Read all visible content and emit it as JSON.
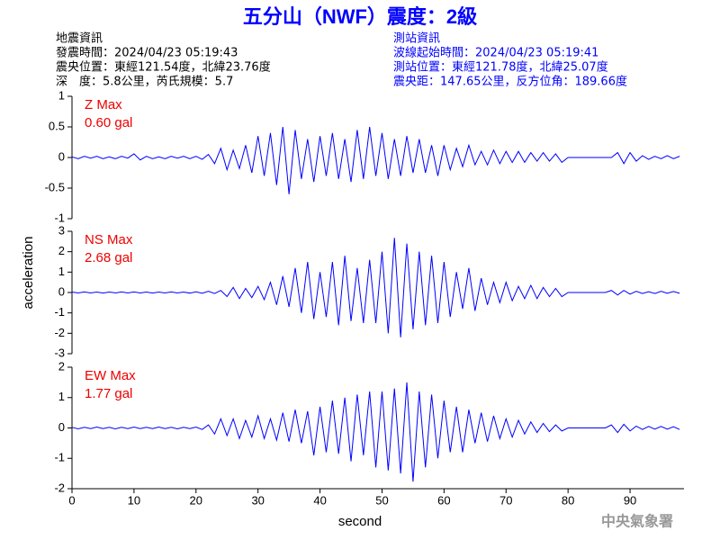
{
  "header": {
    "title": "五分山（NWF）震度：2級",
    "left": [
      "地震資訊",
      "發震時間：2024/04/23 05:19:43",
      "震央位置：東經121.54度，北緯23.76度",
      "深　度：5.8公里，芮氏規模：5.7"
    ],
    "right": [
      "測站資訊",
      "波線起始時間：2024/04/23 05:19:41",
      "測站位置：東經121.78度，北緯25.07度",
      "震央距：147.65公里，反方位角：189.66度"
    ],
    "xlabel": "second",
    "ylabel": "acceleration",
    "footer": "中央氣象署"
  },
  "chart_data": [
    {
      "type": "line",
      "title": "Z Max",
      "annotation": "0.60 gal",
      "color": "#0000ff",
      "xlim": [
        0,
        98.7
      ],
      "ylim": [
        -1,
        1
      ],
      "yticks": [
        1,
        0.5,
        0,
        -0.5,
        -1
      ],
      "x": [
        0,
        1,
        2,
        3,
        4,
        5,
        6,
        7,
        8,
        9,
        10,
        11,
        12,
        13,
        14,
        15,
        16,
        17,
        18,
        19,
        20,
        21,
        22,
        23,
        24,
        25,
        26,
        27,
        28,
        29,
        30,
        31,
        32,
        33,
        34,
        35,
        36,
        37,
        38,
        39,
        40,
        41,
        42,
        43,
        44,
        45,
        46,
        47,
        48,
        49,
        50,
        51,
        52,
        53,
        54,
        55,
        56,
        57,
        58,
        59,
        60,
        61,
        62,
        63,
        64,
        65,
        66,
        67,
        68,
        69,
        70,
        71,
        72,
        73,
        74,
        75,
        76,
        77,
        78,
        79,
        80,
        81,
        82,
        83,
        84,
        85,
        86,
        87,
        88,
        89,
        90,
        91,
        92,
        93,
        94,
        95,
        96,
        97,
        98
      ],
      "values": [
        0.01,
        -0.02,
        0.02,
        -0.01,
        0.02,
        -0.02,
        0.01,
        -0.02,
        0.02,
        -0.01,
        0.06,
        -0.04,
        0.02,
        -0.02,
        0.01,
        -0.02,
        0.02,
        -0.01,
        0.02,
        -0.02,
        0.02,
        -0.03,
        0.05,
        -0.1,
        0.15,
        -0.2,
        0.12,
        -0.18,
        0.2,
        -0.25,
        0.35,
        -0.3,
        0.4,
        -0.45,
        0.5,
        -0.6,
        0.45,
        -0.35,
        0.3,
        -0.4,
        0.35,
        -0.3,
        0.4,
        -0.35,
        0.3,
        -0.4,
        0.45,
        -0.35,
        0.5,
        -0.3,
        0.4,
        -0.35,
        0.3,
        -0.3,
        0.35,
        -0.25,
        0.3,
        -0.25,
        0.2,
        -0.3,
        0.2,
        -0.2,
        0.15,
        -0.15,
        0.2,
        -0.12,
        0.1,
        -0.12,
        0.12,
        -0.1,
        0.1,
        -0.08,
        0.1,
        -0.08,
        0.08,
        -0.06,
        0.08,
        -0.06,
        0.06,
        -0.08,
        0,
        0,
        0,
        0,
        0,
        0,
        0,
        0,
        0.08,
        -0.1,
        0.08,
        -0.06,
        0.03,
        -0.03,
        0.02,
        -0.02,
        0.03,
        -0.02,
        0.02
      ]
    },
    {
      "type": "line",
      "title": "NS Max",
      "annotation": "2.68 gal",
      "color": "#0000ff",
      "xlim": [
        0,
        98.7
      ],
      "ylim": [
        -3,
        3
      ],
      "yticks": [
        3,
        2,
        1,
        0,
        -1,
        -2,
        -3
      ],
      "x": [
        0,
        1,
        2,
        3,
        4,
        5,
        6,
        7,
        8,
        9,
        10,
        11,
        12,
        13,
        14,
        15,
        16,
        17,
        18,
        19,
        20,
        21,
        22,
        23,
        24,
        25,
        26,
        27,
        28,
        29,
        30,
        31,
        32,
        33,
        34,
        35,
        36,
        37,
        38,
        39,
        40,
        41,
        42,
        43,
        44,
        45,
        46,
        47,
        48,
        49,
        50,
        51,
        52,
        53,
        54,
        55,
        56,
        57,
        58,
        59,
        60,
        61,
        62,
        63,
        64,
        65,
        66,
        67,
        68,
        69,
        70,
        71,
        72,
        73,
        74,
        75,
        76,
        77,
        78,
        79,
        80,
        81,
        82,
        83,
        84,
        85,
        86,
        87,
        88,
        89,
        90,
        91,
        92,
        93,
        94,
        95,
        96,
        97,
        98
      ],
      "values": [
        0.02,
        -0.02,
        0.03,
        -0.02,
        0.02,
        -0.03,
        0.02,
        -0.02,
        0.03,
        -0.02,
        0.03,
        -0.02,
        0.02,
        -0.03,
        0.02,
        -0.02,
        0.03,
        -0.02,
        0.02,
        -0.03,
        0.03,
        -0.04,
        0.06,
        -0.05,
        0.1,
        -0.2,
        0.25,
        -0.3,
        0.2,
        -0.25,
        0.3,
        -0.35,
        0.5,
        -0.6,
        0.8,
        -0.7,
        1.2,
        -1,
        1.5,
        -1.3,
        1,
        -1.2,
        1.5,
        -1.6,
        1.8,
        -1.4,
        1.2,
        -1.5,
        1.6,
        -1.5,
        2,
        -2,
        2.68,
        -2.2,
        2.4,
        -1.8,
        2,
        -1.6,
        1.8,
        -1.5,
        1.5,
        -1.2,
        1,
        -0.8,
        1.2,
        -0.9,
        0.7,
        -0.6,
        0.5,
        -0.5,
        0.5,
        -0.4,
        0.3,
        -0.3,
        0.35,
        -0.3,
        0.25,
        -0.2,
        0.2,
        -0.2,
        0,
        0,
        0,
        0,
        0,
        0,
        0,
        0.1,
        -0.12,
        0.1,
        -0.08,
        0.06,
        -0.05,
        0.04,
        -0.05,
        0.06,
        -0.04,
        0.05,
        -0.04
      ]
    },
    {
      "type": "line",
      "title": "EW Max",
      "annotation": "1.77 gal",
      "color": "#0000ff",
      "xlim": [
        0,
        98.7
      ],
      "ylim": [
        -2,
        2
      ],
      "yticks": [
        2,
        1,
        0,
        -1,
        -2
      ],
      "xticks": [
        0,
        10,
        20,
        30,
        40,
        50,
        60,
        70,
        80,
        90
      ],
      "x": [
        0,
        1,
        2,
        3,
        4,
        5,
        6,
        7,
        8,
        9,
        10,
        11,
        12,
        13,
        14,
        15,
        16,
        17,
        18,
        19,
        20,
        21,
        22,
        23,
        24,
        25,
        26,
        27,
        28,
        29,
        30,
        31,
        32,
        33,
        34,
        35,
        36,
        37,
        38,
        39,
        40,
        41,
        42,
        43,
        44,
        45,
        46,
        47,
        48,
        49,
        50,
        51,
        52,
        53,
        54,
        55,
        56,
        57,
        58,
        59,
        60,
        61,
        62,
        63,
        64,
        65,
        66,
        67,
        68,
        69,
        70,
        71,
        72,
        73,
        74,
        75,
        76,
        77,
        78,
        79,
        80,
        81,
        82,
        83,
        84,
        85,
        86,
        87,
        88,
        89,
        90,
        91,
        92,
        93,
        94,
        95,
        96,
        97,
        98
      ],
      "values": [
        0.02,
        -0.03,
        0.02,
        -0.02,
        0.03,
        -0.02,
        0.02,
        -0.03,
        0.02,
        -0.02,
        0.03,
        -0.02,
        0.02,
        -0.02,
        0.03,
        -0.02,
        0.02,
        -0.03,
        0.02,
        -0.02,
        0.03,
        -0.05,
        0.1,
        -0.2,
        0.3,
        -0.25,
        0.3,
        -0.35,
        0.25,
        -0.3,
        0.4,
        -0.35,
        0.3,
        -0.4,
        0.5,
        -0.45,
        0.6,
        -0.5,
        0.55,
        -0.9,
        0.7,
        -0.8,
        0.9,
        -0.85,
        1,
        -1.1,
        1.1,
        -0.9,
        1.2,
        -1.3,
        1.2,
        -1.4,
        1.3,
        -1.5,
        1.5,
        -1.77,
        1.2,
        -1.3,
        1.1,
        -1,
        0.9,
        -0.8,
        0.7,
        -0.8,
        0.6,
        -0.5,
        0.5,
        -0.45,
        0.4,
        -0.35,
        0.3,
        -0.3,
        0.25,
        -0.2,
        0.2,
        -0.15,
        0.15,
        -0.12,
        0.1,
        -0.1,
        0,
        0,
        0,
        0,
        0,
        0,
        0,
        0.1,
        -0.15,
        0.12,
        -0.1,
        0.06,
        -0.05,
        0.05,
        -0.04,
        0.05,
        -0.04,
        0.04,
        -0.05
      ]
    }
  ]
}
